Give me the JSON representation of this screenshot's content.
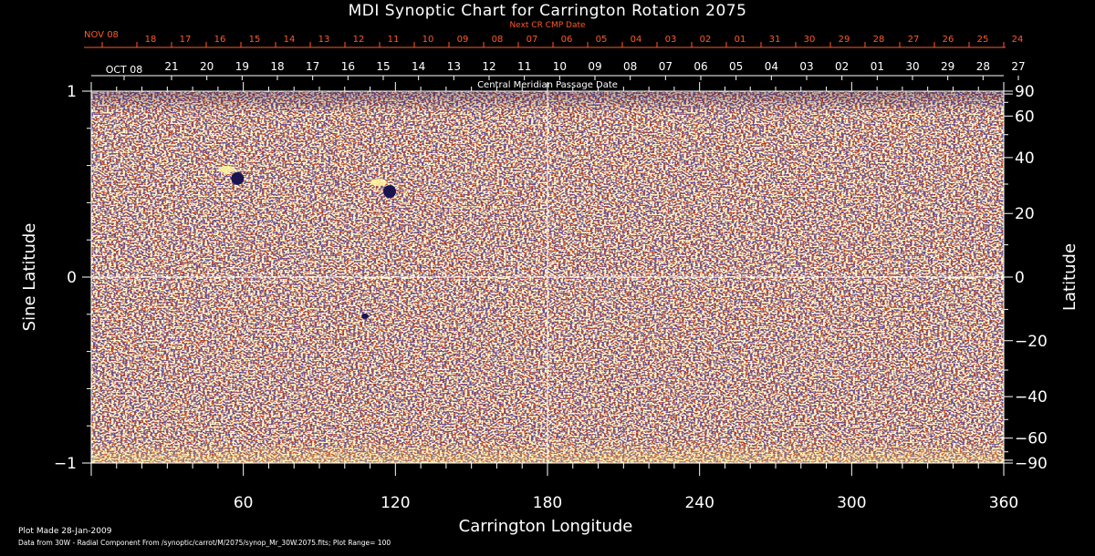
{
  "header": {
    "title": "MDI Synoptic Chart for Carrington Rotation 2075",
    "next_cr_label": "Next CR CMP Date",
    "cmp_label": "Central Meridian Passage Date"
  },
  "footer": {
    "plot_made": "Plot Made 28-Jan-2009",
    "source": "Data from 30W - Radial Component From /synoptic/carrot/M/2075/synop_Mr_30W.2075.fits; Plot Range=  100"
  },
  "colors": {
    "background": "#000000",
    "map_base": "#e8400f",
    "negative_field": "#1a1450",
    "positive_field": "#fff4a0",
    "next_cr_text": "#ff5a2a"
  },
  "chart_data": {
    "type": "heatmap",
    "description_type": "synoptic magnetogram",
    "xlabel": "Carrington Longitude",
    "ylabel_left": "Sine Latitude",
    "ylabel_right": "Latitude",
    "xlim": [
      0,
      360
    ],
    "ylim": [
      -1,
      1
    ],
    "x_ticks": [
      60,
      120,
      180,
      240,
      300,
      360
    ],
    "y_ticks_left": [
      1,
      0,
      -1
    ],
    "y_ticks_left_labels": [
      "1",
      "0",
      "−1"
    ],
    "y_ticks_right": [
      90,
      60,
      40,
      20,
      0,
      -20,
      -40,
      -60,
      -90
    ],
    "y_ticks_right_labels": [
      "90",
      "60",
      "40",
      "20",
      "0",
      "−20",
      "−40",
      "−60",
      "−90"
    ],
    "plot_range": 100,
    "next_cr_dates": [
      "NOV 08",
      "18",
      "17",
      "16",
      "15",
      "14",
      "13",
      "12",
      "11",
      "10",
      "09",
      "08",
      "07",
      "06",
      "05",
      "04",
      "03",
      "02",
      "01",
      "31",
      "30",
      "29",
      "28",
      "27",
      "26",
      "25",
      "24"
    ],
    "cmp_dates": [
      "OCT 08",
      "21",
      "20",
      "19",
      "18",
      "17",
      "16",
      "15",
      "14",
      "13",
      "12",
      "11",
      "10",
      "09",
      "08",
      "07",
      "06",
      "05",
      "04",
      "03",
      "02",
      "01",
      "30",
      "29",
      "28",
      "27"
    ],
    "features": [
      {
        "name": "active region bipole",
        "longitude": 117,
        "sine_latitude": 0.47,
        "polarity": "mixed"
      },
      {
        "name": "active region",
        "longitude": 57,
        "sine_latitude": 0.54,
        "polarity": "mixed"
      },
      {
        "name": "small negative spot",
        "longitude": 108,
        "sine_latitude": -0.21,
        "polarity": "negative"
      }
    ]
  }
}
